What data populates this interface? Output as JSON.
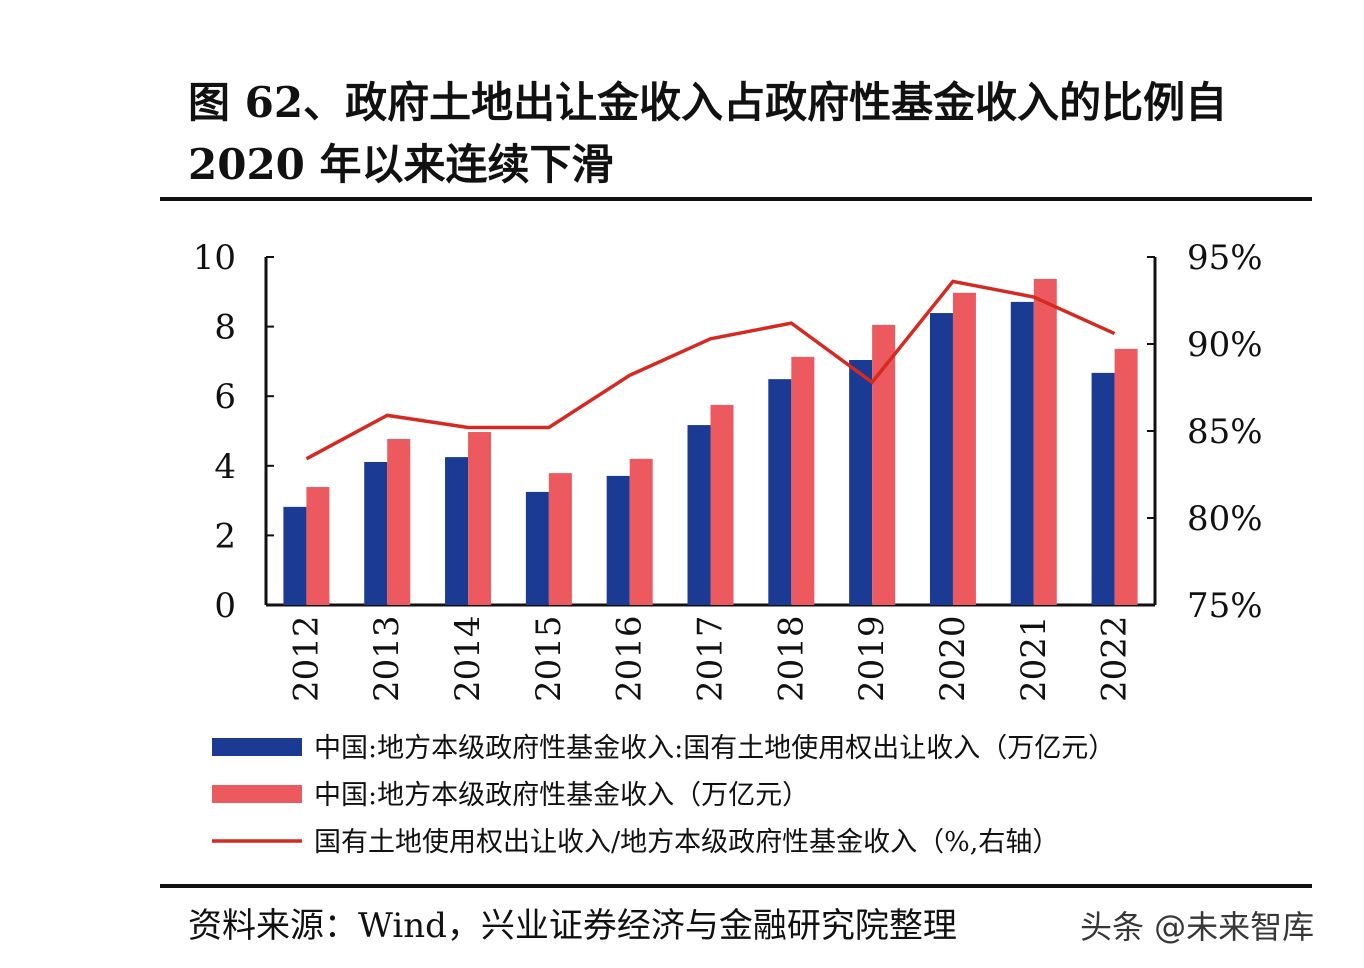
{
  "title": "图 62、政府土地出让金收入占政府性基金收入的比例自 2020 年以来连续下滑",
  "source": "资料来源：Wind，兴业证券经济与金融研究院整理",
  "watermark": "头条 @未来智库",
  "chart_data": {
    "type": "bar+line",
    "categories": [
      "2012",
      "2013",
      "2014",
      "2015",
      "2016",
      "2017",
      "2018",
      "2019",
      "2020",
      "2021",
      "2022"
    ],
    "left_axis": {
      "ylim": [
        0,
        10
      ],
      "ticks": [
        "0",
        "2",
        "4",
        "6",
        "8",
        "10"
      ]
    },
    "right_axis": {
      "ylim": [
        75,
        95
      ],
      "ticks": [
        "75%",
        "80%",
        "85%",
        "90%",
        "95%"
      ]
    },
    "grid": false,
    "legend_placement": "bottom",
    "series": [
      {
        "name": "中国:地方本级政府性基金收入:国有土地使用权出让收入（万亿元）",
        "type": "bar",
        "axis": "left",
        "color": "#1a3a94",
        "values": [
          2.82,
          4.11,
          4.25,
          3.25,
          3.71,
          5.17,
          6.49,
          7.04,
          8.39,
          8.71,
          6.67
        ]
      },
      {
        "name": "中国:地方本级政府性基金收入（万亿元）",
        "type": "bar",
        "axis": "left",
        "color": "#ec5a5f",
        "values": [
          3.39,
          4.77,
          4.97,
          3.79,
          4.2,
          5.75,
          7.13,
          8.05,
          8.97,
          9.37,
          7.36
        ]
      },
      {
        "name": "国有土地使用权出让收入/地方本级政府性基金收入（%,右轴）",
        "type": "line",
        "axis": "right",
        "color": "#d42a22",
        "values": [
          83.4,
          85.9,
          85.2,
          85.2,
          88.2,
          90.3,
          91.2,
          87.8,
          93.6,
          92.7,
          90.6
        ]
      }
    ]
  }
}
